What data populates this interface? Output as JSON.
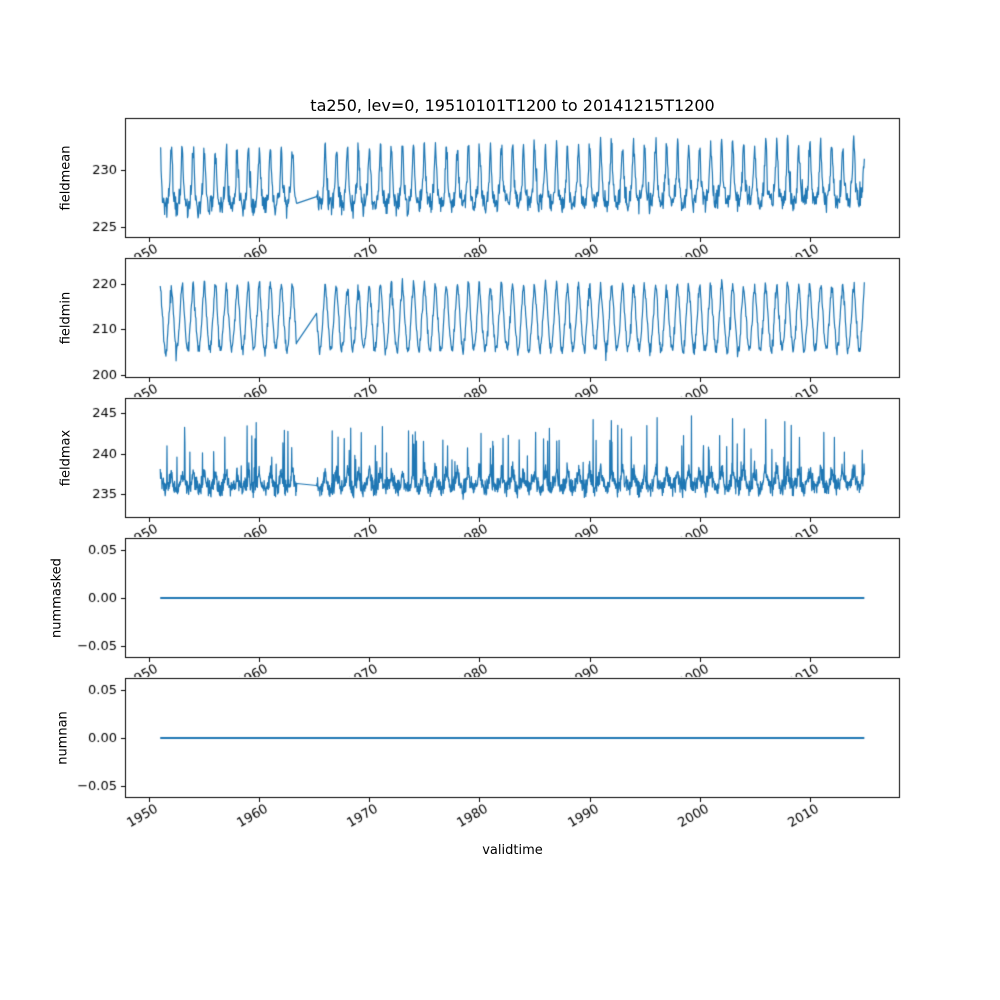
{
  "figure": {
    "title": "ta250, lev=0, 19510101T1200 to 20141215T1200",
    "xlabel": "validtime",
    "line_color": "#1f77b4",
    "background_color": "#ffffff",
    "axis_color": "#000000",
    "x_ticks": [
      1950,
      1960,
      1970,
      1980,
      1990,
      2000,
      2010
    ],
    "x_data_start": 1951.0,
    "x_data_end": 2014.96,
    "x_axis_min": 1947.8,
    "x_axis_max": 2018.2,
    "data_gap": [
      1963.4,
      1965.2
    ]
  },
  "chart_data": [
    {
      "type": "line",
      "series_name": "fieldmean",
      "ylabel": "fieldmean",
      "yticks": [
        225,
        230
      ],
      "ytick_decimals": 0,
      "ylim": [
        224.0,
        234.6
      ],
      "x_range": [
        1951.0,
        2014.96
      ],
      "generator": {
        "kind": "noisy-seasonal",
        "seed": 11,
        "points": 1600,
        "baseline": 227.6,
        "trend_total": 0.5,
        "seasonal_amplitude": 0.9,
        "peak_amplitude": 3.4,
        "noise_amplitude": 1.15,
        "spike_probability": 0.012,
        "spike_amplitude": 1.6,
        "observed_min": 224.4,
        "observed_max": 234.0
      }
    },
    {
      "type": "line",
      "series_name": "fieldmin",
      "ylabel": "fieldmin",
      "yticks": [
        200,
        210,
        220
      ],
      "ytick_decimals": 0,
      "ylim": [
        199.4,
        225.6
      ],
      "x_range": [
        1951.0,
        2014.96
      ],
      "generator": {
        "kind": "noisy-seasonal",
        "seed": 22,
        "points": 1600,
        "baseline": 211.5,
        "trend_total": 0.0,
        "seasonal_amplitude": 6.0,
        "peak_amplitude": 2.2,
        "noise_amplitude": 1.6,
        "spike_probability": 0.012,
        "spike_amplitude": -3.5,
        "observed_min": 200.7,
        "observed_max": 222.8
      }
    },
    {
      "type": "line",
      "series_name": "fieldmax",
      "ylabel": "fieldmax",
      "yticks": [
        235,
        240,
        245
      ],
      "ytick_decimals": 0,
      "ylim": [
        232.0,
        246.9
      ],
      "x_range": [
        1951.0,
        2014.96
      ],
      "generator": {
        "kind": "noisy-seasonal",
        "seed": 33,
        "points": 2400,
        "baseline": 236.1,
        "trend_total": 0.3,
        "seasonal_amplitude": 0.6,
        "peak_amplitude": 1.0,
        "noise_amplitude": 1.35,
        "spike_probability": 0.045,
        "spike_amplitude": 7.5,
        "observed_min": 233.0,
        "observed_max": 246.6
      }
    },
    {
      "type": "line",
      "series_name": "nummasked",
      "ylabel": "nummasked",
      "yticks": [
        0.05,
        0.0,
        -0.05
      ],
      "ytick_decimals": 2,
      "ylim": [
        -0.0625,
        0.0625
      ],
      "x_range": [
        1951.0,
        2014.96
      ],
      "generator": {
        "kind": "constant",
        "value": 0.0
      }
    },
    {
      "type": "line",
      "series_name": "numnan",
      "ylabel": "numnan",
      "yticks": [
        0.05,
        0.0,
        -0.05
      ],
      "ytick_decimals": 2,
      "ylim": [
        -0.0625,
        0.0625
      ],
      "x_range": [
        1951.0,
        2014.96
      ],
      "generator": {
        "kind": "constant",
        "value": 0.0
      }
    }
  ]
}
